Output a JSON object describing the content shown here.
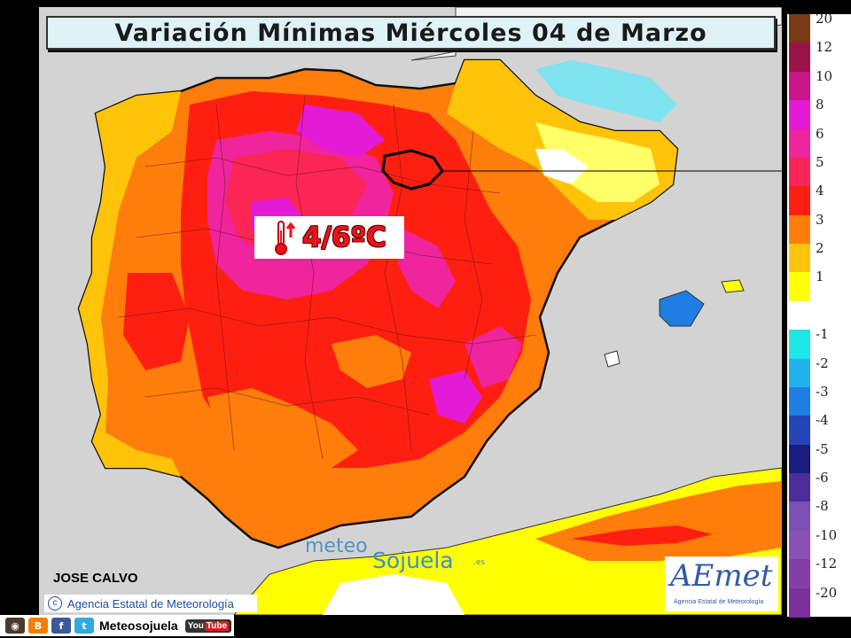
{
  "title": "Variación Mínimas Miércoles 04 de Marzo",
  "callout": {
    "value": "4/6ºC",
    "icon": "thermometer-up-icon",
    "color": "#e8141c"
  },
  "credit": "JOSE CALVO",
  "agency_text": "Agencia Estatal de Meteorología",
  "watermark": {
    "part1": "meteo",
    "part2": "Sojuela",
    "part3": ".es"
  },
  "aemet": {
    "logo": "AEmet",
    "subtitle": "Agencia Estatal de Meteorología"
  },
  "legend": [
    {
      "label": "20",
      "color": "#7a3a12"
    },
    {
      "label": "12",
      "color": "#9a1447"
    },
    {
      "label": "10",
      "color": "#c8158a"
    },
    {
      "label": "8",
      "color": "#e31ad6"
    },
    {
      "label": "6",
      "color": "#f0249c"
    },
    {
      "label": "5",
      "color": "#fb2556"
    },
    {
      "label": "4",
      "color": "#ff1f10"
    },
    {
      "label": "3",
      "color": "#ff7d0a"
    },
    {
      "label": "2",
      "color": "#ffc30a"
    },
    {
      "label": "1",
      "color": "#ffff00"
    },
    {
      "label": "",
      "color": "#ffffff"
    },
    {
      "label": "-1",
      "color": "#1ee6e6"
    },
    {
      "label": "-2",
      "color": "#21b3ee"
    },
    {
      "label": "-3",
      "color": "#1e7ee3"
    },
    {
      "label": "-4",
      "color": "#2345b8"
    },
    {
      "label": "-5",
      "color": "#1a1d7d"
    },
    {
      "label": "-6",
      "color": "#4d2d9c"
    },
    {
      "label": "-8",
      "color": "#7b50b7"
    },
    {
      "label": "-10",
      "color": "#8a51b5"
    },
    {
      "label": "-12",
      "color": "#853da8"
    },
    {
      "label": "-20",
      "color": "#7a2f99"
    }
  ],
  "bottom_bar": {
    "brand": "Meteosojuela",
    "youtube": "You",
    "youtube_tube": "Tube"
  }
}
